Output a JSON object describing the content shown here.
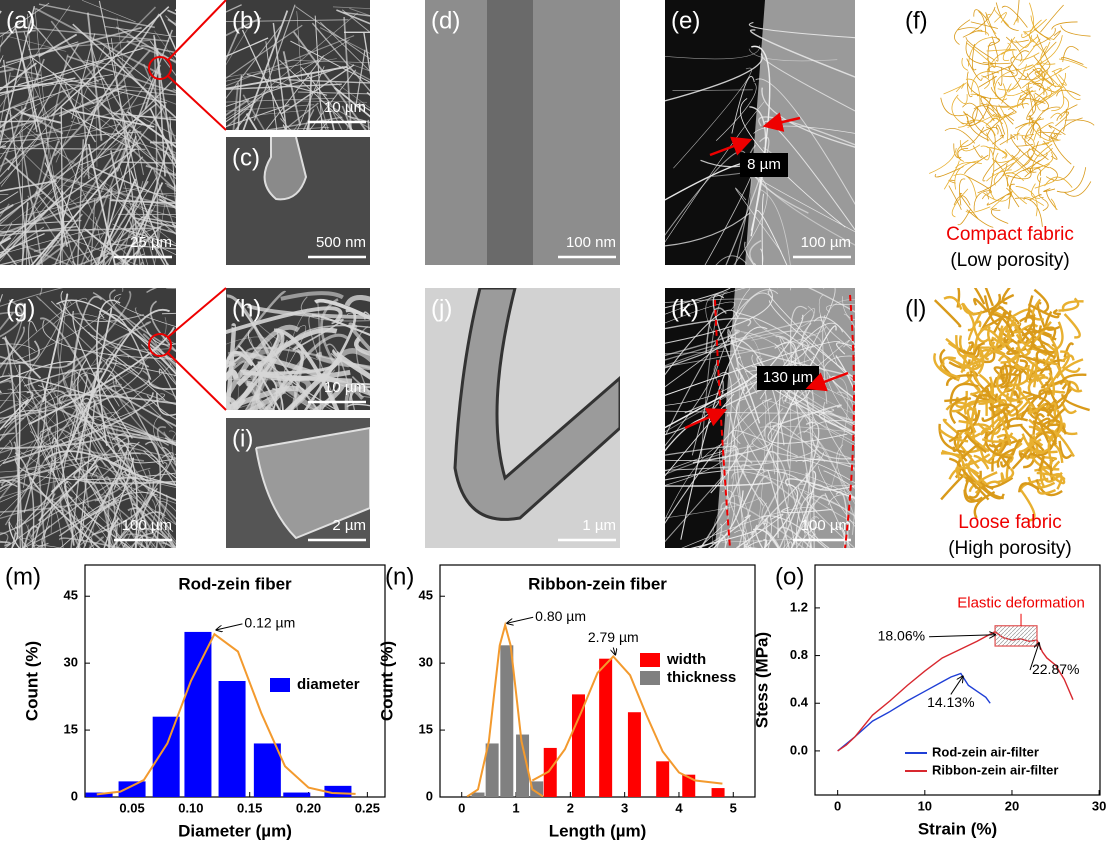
{
  "panels": [
    {
      "label": "(a)",
      "scale_bar": "25 µm"
    },
    {
      "label": "(b)",
      "scale_bar": "10 µm"
    },
    {
      "label": "(c)",
      "scale_bar": "500 nm"
    },
    {
      "label": "(d)",
      "scale_bar": "100 nm"
    },
    {
      "label": "(e)",
      "scale_bar": "100 µm",
      "annotation": "8 µm"
    },
    {
      "label": "(f)",
      "caption": "Compact fabric",
      "subcaption": "(Low porosity)"
    },
    {
      "label": "(g)",
      "scale_bar": "100 µm"
    },
    {
      "label": "(h)",
      "scale_bar": "10 µm"
    },
    {
      "label": "(i)",
      "scale_bar": "2 µm"
    },
    {
      "label": "(j)",
      "scale_bar": "1 µm"
    },
    {
      "label": "(k)",
      "scale_bar": "100 µm",
      "annotation": "130 µm"
    },
    {
      "label": "(l)",
      "caption": "Loose fabric",
      "subcaption": "(High porosity)"
    }
  ],
  "chart_data": [
    {
      "type": "bar",
      "label": "(m)",
      "title": "Rod-zein fiber",
      "x_label": "Diameter (µm)",
      "y_label": "Count (%)",
      "xlim": [
        0.01,
        0.265
      ],
      "ylim": [
        0,
        52
      ],
      "xticks": [
        0.05,
        {
          "value": 0.1,
          "label": "0.10"
        },
        0.15,
        {
          "value": 0.2,
          "label": "0.20"
        },
        0.25
      ],
      "yticks": [
        0,
        15,
        30,
        45
      ],
      "legend": "upper right",
      "series": [
        {
          "name": "diameter",
          "type": "bar",
          "color": "#0000ff",
          "x": [
            0.022,
            0.05,
            0.079,
            0.106,
            0.135,
            0.165,
            0.19,
            0.225
          ],
          "values": [
            1,
            3.5,
            18,
            37,
            26,
            12,
            1,
            2.5
          ]
        },
        {
          "type": "line",
          "color": "#f39a2e",
          "x": [
            0.02,
            0.04,
            0.06,
            0.08,
            0.1,
            0.12,
            0.14,
            0.16,
            0.18,
            0.2,
            0.22,
            0.24
          ],
          "values": [
            0.6,
            1.2,
            3.8,
            12,
            26,
            36.5,
            32.6,
            18.7,
            6.9,
            2.1,
            0.9,
            0.7
          ]
        }
      ],
      "annotations": [
        {
          "text": "0.12 µm",
          "x": 0.12,
          "y": 37
        }
      ]
    },
    {
      "type": "bar",
      "label": "(n)",
      "title": "Ribbon-zein fiber",
      "x_label": "Length (µm)",
      "y_label": "Count (%)",
      "xlim": [
        -0.4,
        5.4
      ],
      "ylim": [
        0,
        52
      ],
      "xticks": [
        0,
        1,
        2,
        3,
        4,
        5
      ],
      "yticks": [
        0,
        15,
        30,
        45
      ],
      "legend": "upper right",
      "series": [
        {
          "name": "width",
          "type": "bar",
          "color": "#ff0000",
          "x": [
            1.63,
            2.15,
            2.65,
            3.18,
            3.7,
            4.18,
            4.72
          ],
          "values": [
            11,
            23,
            31,
            19,
            8,
            5,
            2
          ]
        },
        {
          "name": "thickness",
          "type": "bar",
          "color": "#808080",
          "x": [
            0.3,
            0.56,
            0.83,
            1.12,
            1.38
          ],
          "values": [
            1,
            12,
            34,
            14,
            3.5
          ]
        },
        {
          "type": "line",
          "color": "#f39a2e",
          "x": [
            0.1,
            0.3,
            0.5,
            0.6,
            0.7,
            0.8,
            0.9,
            1.0,
            1.1,
            1.3,
            1.5
          ],
          "values": [
            0.1,
            1.7,
            12.5,
            23.4,
            34,
            38.5,
            34,
            23.4,
            12.5,
            1.7,
            0.1
          ]
        },
        {
          "type": "line",
          "color": "#f39a2e",
          "x": [
            1.3,
            1.6,
            1.9,
            2.2,
            2.5,
            2.79,
            3.1,
            3.4,
            3.7,
            4.0,
            4.3,
            4.8
          ],
          "values": [
            3.7,
            5.7,
            10.7,
            19,
            27.8,
            31.5,
            27.3,
            18.4,
            10.2,
            5.5,
            3.7,
            3.0
          ]
        }
      ],
      "annotations": [
        {
          "text": "0.80 µm",
          "x": 0.8,
          "y": 38.5
        },
        {
          "text": "2.79 µm",
          "x": 2.79,
          "y": 31.5
        }
      ]
    },
    {
      "type": "line",
      "label": "(o)",
      "x_label": "Strain (%)",
      "y_label": "Stess (MPa)",
      "xlim": [
        -2.6,
        30.1
      ],
      "ylim": [
        -0.37,
        1.56
      ],
      "xticks": [
        0,
        10,
        20,
        30
      ],
      "yticks": [
        {
          "value": 0,
          "label": "0.0"
        },
        0.4,
        0.8,
        1.2
      ],
      "legend": "lower right",
      "series": [
        {
          "name": "Rod-zein air-filter",
          "type": "line",
          "color": "#1f3fd6",
          "x": [
            0,
            1,
            2,
            4,
            6,
            8,
            10,
            12,
            13,
            14.13,
            15,
            16,
            17,
            17.5
          ],
          "values": [
            0,
            0.06,
            0.12,
            0.25,
            0.33,
            0.42,
            0.5,
            0.58,
            0.62,
            0.65,
            0.55,
            0.5,
            0.45,
            0.4
          ]
        },
        {
          "name": "Ribbon-zein air-filter",
          "type": "line",
          "color": "#d8282f",
          "x": [
            0,
            1,
            2,
            4,
            6,
            8,
            10,
            12,
            14,
            16,
            17,
            18.06,
            19,
            20,
            21,
            22,
            22.87,
            23.5,
            24,
            25,
            26,
            27
          ],
          "values": [
            0,
            0.05,
            0.12,
            0.3,
            0.42,
            0.55,
            0.67,
            0.78,
            0.85,
            0.92,
            0.96,
            1.0,
            0.95,
            0.93,
            0.94,
            0.92,
            0.93,
            0.83,
            0.78,
            0.72,
            0.6,
            0.43
          ]
        }
      ],
      "highlight": {
        "text": "Elastic deformation",
        "x": [
          18.06,
          22.87
        ],
        "y": [
          0.88,
          1.05
        ]
      },
      "annotations": [
        {
          "text": "18.06%",
          "x": 18.06,
          "y": 1.0
        },
        {
          "text": "22.87%",
          "x": 22.87,
          "y": 0.93
        },
        {
          "text": "14.13%",
          "x": 14.13,
          "y": 0.65
        }
      ]
    }
  ]
}
